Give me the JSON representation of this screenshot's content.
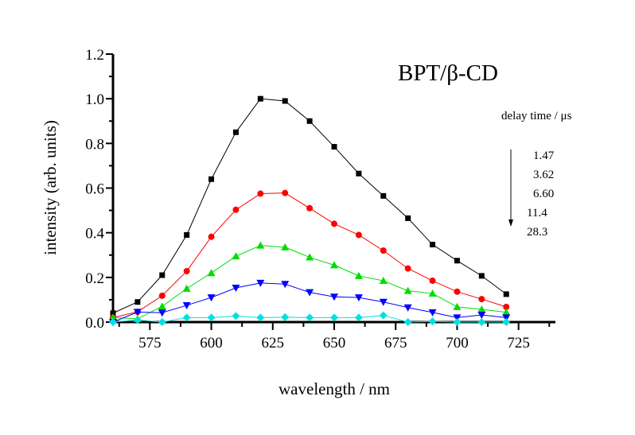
{
  "chart_data": {
    "type": "line",
    "title": "BPT/β-CD",
    "xlabel": "wavelength / nm",
    "ylabel": "intensity (arb. units)",
    "xlim": [
      560,
      740
    ],
    "ylim": [
      0.0,
      1.2
    ],
    "xticks": [
      575,
      600,
      625,
      650,
      675,
      700,
      725
    ],
    "xtick_labels": [
      "575",
      "600",
      "625",
      "650",
      "675",
      "700",
      "725"
    ],
    "xminor": [
      562.5,
      587.5,
      612.5,
      637.5,
      662.5,
      687.5,
      712.5,
      737.5
    ],
    "yticks": [
      0.0,
      0.2,
      0.4,
      0.6,
      0.8,
      1.0,
      1.2
    ],
    "ytick_labels": [
      "0.0",
      "0.2",
      "0.4",
      "0.6",
      "0.8",
      "1.0",
      "1.2"
    ],
    "yminor": [
      0.1,
      0.3,
      0.5,
      0.7,
      0.9,
      1.1
    ],
    "grid": false,
    "legend_title": "delay time / μs",
    "legend_placement": "right",
    "x": [
      560,
      570,
      580,
      590,
      600,
      610,
      620,
      630,
      640,
      650,
      660,
      670,
      680,
      690,
      700,
      710,
      720
    ],
    "series": [
      {
        "name": "1.47",
        "color": "#000000",
        "marker": "square",
        "values": [
          0.04,
          0.09,
          0.21,
          0.39,
          0.64,
          0.85,
          1.0,
          0.99,
          0.9,
          0.785,
          0.665,
          0.565,
          0.465,
          0.347,
          0.275,
          0.207,
          0.125
        ]
      },
      {
        "name": "3.62",
        "color": "#ff0000",
        "marker": "circle",
        "values": [
          0.02,
          0.046,
          0.118,
          0.228,
          0.382,
          0.503,
          0.575,
          0.578,
          0.51,
          0.44,
          0.39,
          0.32,
          0.24,
          0.185,
          0.136,
          0.103,
          0.068
        ]
      },
      {
        "name": "6.60",
        "color": "#00dd00",
        "marker": "triangle-up",
        "values": [
          0.02,
          0.015,
          0.07,
          0.15,
          0.22,
          0.295,
          0.343,
          0.335,
          0.29,
          0.255,
          0.207,
          0.185,
          0.14,
          0.128,
          0.068,
          0.057,
          0.044
        ]
      },
      {
        "name": "11.4",
        "color": "#0000ff",
        "marker": "triangle-down",
        "values": [
          0.0,
          0.045,
          0.042,
          0.075,
          0.11,
          0.153,
          0.175,
          0.17,
          0.133,
          0.113,
          0.11,
          0.09,
          0.065,
          0.043,
          0.02,
          0.032,
          0.02
        ]
      },
      {
        "name": "28.3",
        "color": "#00e0e0",
        "marker": "diamond",
        "values": [
          0.0,
          0.01,
          0.0,
          0.02,
          0.02,
          0.027,
          0.02,
          0.022,
          0.02,
          0.02,
          0.02,
          0.03,
          0.0,
          0.003,
          0.0,
          0.0,
          0.0
        ]
      }
    ]
  }
}
